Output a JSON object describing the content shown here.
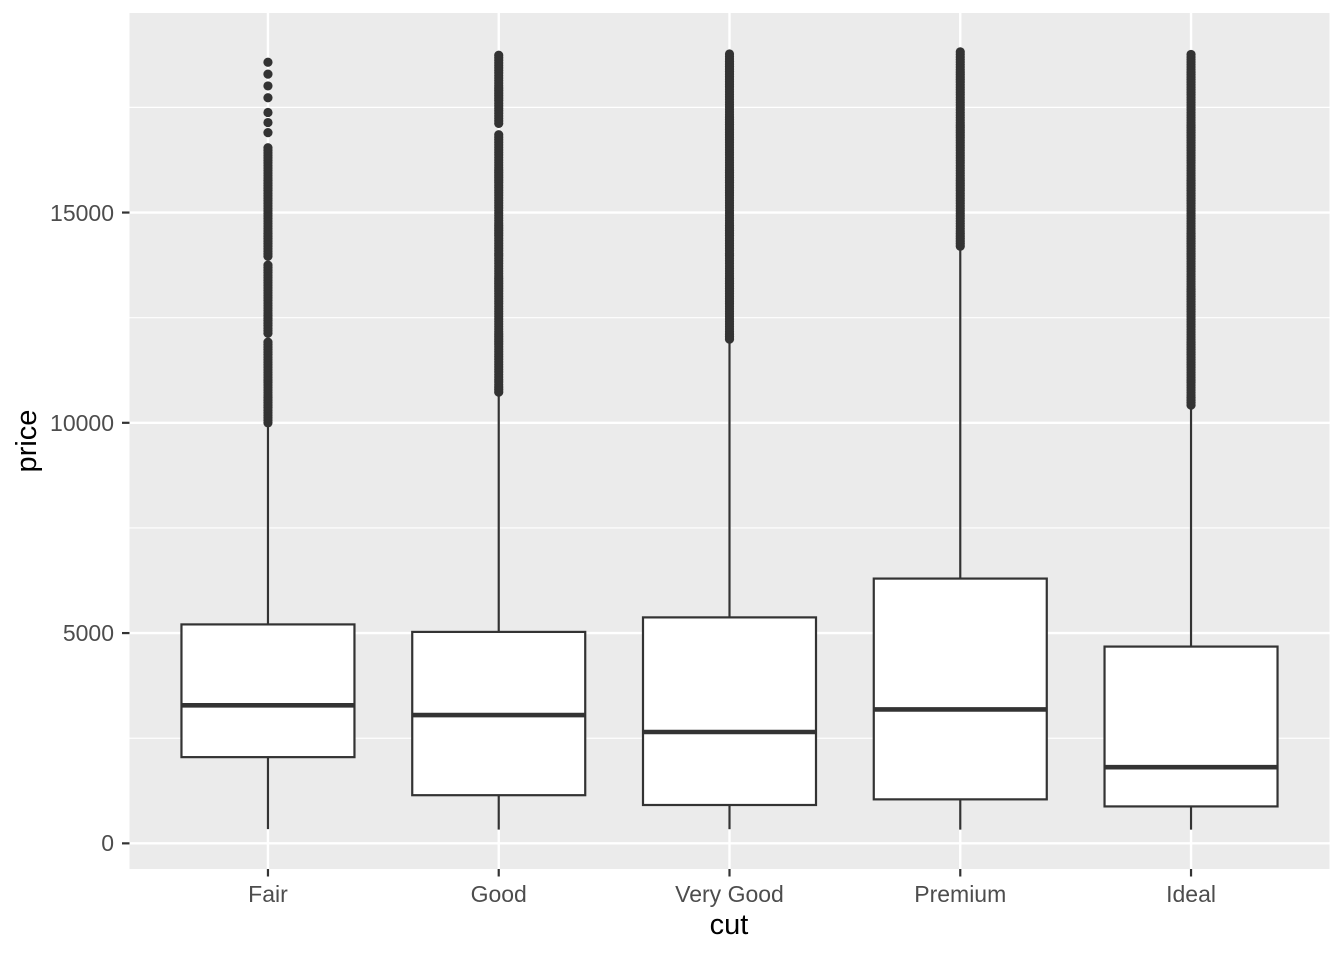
{
  "colors": {
    "plot_background": "#ffffff",
    "panel_background": "#ebebeb",
    "gridline": "#ffffff",
    "box_fill": "#ffffff",
    "box_stroke": "#333333",
    "outlier_dot": "#333333",
    "tick_mark": "#333333",
    "axis_text": "#4d4d4d",
    "axis_title_text": "#000000"
  },
  "chart_data": {
    "type": "boxplot",
    "title": "",
    "xlabel": "cut",
    "ylabel": "price",
    "categories": [
      "Fair",
      "Good",
      "Very Good",
      "Premium",
      "Ideal"
    ],
    "legend": "none",
    "grid": "on",
    "y_axis": {
      "ticks": [
        0,
        5000,
        10000,
        15000
      ],
      "minor_ticks": [
        2500,
        7500,
        12500,
        17500
      ],
      "range": [
        -610,
        19745
      ]
    },
    "series": [
      {
        "category": "Fair",
        "whisker_low": 337,
        "q1": 2050,
        "median": 3282,
        "q3": 5206,
        "whisker_high": 9899,
        "outlier_max": 18574,
        "outlier_runs": [
          [
            10000,
            11960,
            60
          ],
          [
            12130,
            13790,
            60
          ],
          [
            13960,
            16540,
            60
          ],
          [
            16900,
            17380,
            240
          ],
          [
            17730,
            18574,
            281
          ]
        ]
      },
      {
        "category": "Good",
        "whisker_low": 327,
        "q1": 1145,
        "median": 3050,
        "q3": 5028,
        "whisker_high": 10796,
        "outlier_max": 18788,
        "outlier_runs": [
          [
            10730,
            16890,
            60
          ],
          [
            17120,
            18788,
            60
          ]
        ]
      },
      {
        "category": "Very Good",
        "whisker_low": 336,
        "q1": 912,
        "median": 2648,
        "q3": 5373,
        "whisker_high": 12047,
        "outlier_max": 18818,
        "outlier_runs": [
          [
            11990,
            18818,
            60
          ]
        ]
      },
      {
        "category": "Premium",
        "whisker_low": 326,
        "q1": 1046,
        "median": 3185,
        "q3": 6296,
        "whisker_high": 14160,
        "outlier_max": 18823,
        "outlier_runs": [
          [
            14200,
            18823,
            60
          ]
        ]
      },
      {
        "category": "Ideal",
        "whisker_low": 326,
        "q1": 878,
        "median": 1810,
        "q3": 4679,
        "whisker_high": 10371,
        "outlier_max": 18806,
        "outlier_runs": [
          [
            10420,
            18806,
            60
          ]
        ]
      }
    ]
  }
}
